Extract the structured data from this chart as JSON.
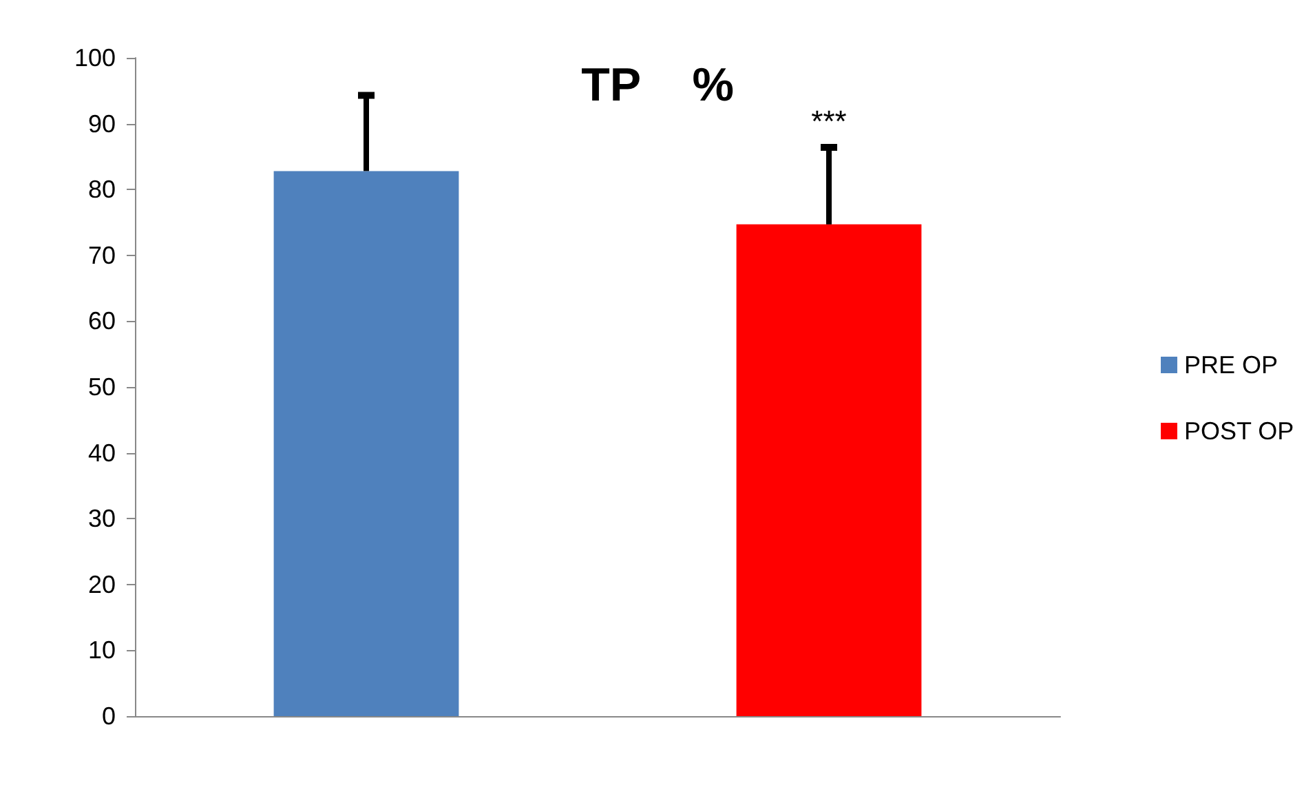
{
  "chart_data": {
    "type": "bar",
    "title": "TP    %",
    "categories": [
      null,
      null
    ],
    "series": [
      {
        "name": "PRE OP",
        "color": "#4f81bd",
        "values": [
          82.8,
          null
        ],
        "errors": [
          [
            82.8,
            94.3
          ],
          null
        ]
      },
      {
        "name": "POST OP",
        "color": "#ff0000",
        "values": [
          null,
          74.7
        ],
        "errors": [
          null,
          [
            74.7,
            86.4
          ]
        ]
      }
    ],
    "annotations": [
      "***"
    ],
    "ylim": [
      0,
      100
    ],
    "yticks": [
      0,
      10,
      20,
      30,
      40,
      50,
      60,
      70,
      80,
      90,
      100
    ],
    "grid": false,
    "legend": "right"
  }
}
